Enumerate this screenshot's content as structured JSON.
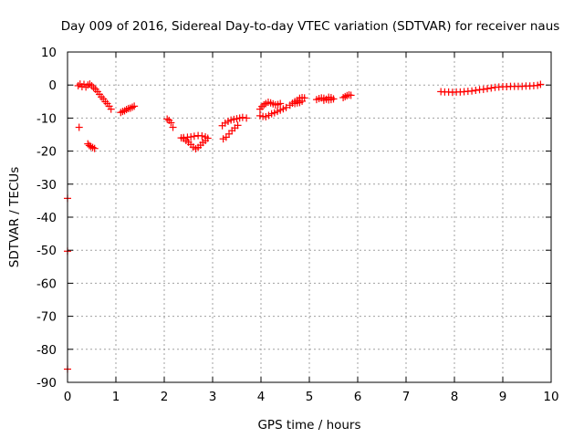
{
  "chart_data": {
    "type": "scatter",
    "title": "Day 009 of 2016, Sidereal Day-to-day VTEC variation (SDTVAR) for receiver naus",
    "xlabel": "GPS time / hours",
    "ylabel": "SDTVAR / TECUs",
    "xlim": [
      0,
      10
    ],
    "ylim": [
      -90,
      10
    ],
    "grid": true,
    "xticks": [
      0,
      1,
      2,
      3,
      4,
      5,
      6,
      7,
      8,
      9,
      10
    ],
    "yticks": [
      10,
      0,
      -10,
      -20,
      -30,
      -40,
      -50,
      -60,
      -70,
      -80,
      -90
    ],
    "marker": "+",
    "series_color": "#ff0000",
    "series": [
      {
        "name": "SDTVAR",
        "points": [
          [
            0.0,
            -34.3
          ],
          [
            0.0,
            -50.3
          ],
          [
            0.0,
            -86.0
          ],
          [
            0.24,
            -12.8
          ],
          [
            0.22,
            -0.2
          ],
          [
            0.26,
            0.3
          ],
          [
            0.3,
            -0.5
          ],
          [
            0.34,
            0.2
          ],
          [
            0.38,
            -0.6
          ],
          [
            0.42,
            0.0
          ],
          [
            0.46,
            0.3
          ],
          [
            0.5,
            -0.2
          ],
          [
            0.54,
            -0.8
          ],
          [
            0.58,
            -1.3
          ],
          [
            0.62,
            -2.0
          ],
          [
            0.66,
            -2.8
          ],
          [
            0.7,
            -3.6
          ],
          [
            0.74,
            -4.2
          ],
          [
            0.78,
            -5.0
          ],
          [
            0.82,
            -5.6
          ],
          [
            0.86,
            -6.4
          ],
          [
            0.9,
            -7.3
          ],
          [
            0.42,
            -17.8
          ],
          [
            0.45,
            -18.3
          ],
          [
            0.48,
            -18.6
          ],
          [
            0.52,
            -18.9
          ],
          [
            0.56,
            -19.2
          ],
          [
            1.1,
            -8.3
          ],
          [
            1.14,
            -8.0
          ],
          [
            1.18,
            -7.8
          ],
          [
            1.22,
            -7.4
          ],
          [
            1.26,
            -7.1
          ],
          [
            1.3,
            -7.0
          ],
          [
            1.34,
            -6.7
          ],
          [
            1.38,
            -6.4
          ],
          [
            2.06,
            -10.3
          ],
          [
            2.1,
            -10.7
          ],
          [
            2.14,
            -11.4
          ],
          [
            2.18,
            -12.8
          ],
          [
            2.35,
            -16.0
          ],
          [
            2.4,
            -16.2
          ],
          [
            2.45,
            -16.8
          ],
          [
            2.5,
            -17.3
          ],
          [
            2.55,
            -18.0
          ],
          [
            2.6,
            -18.8
          ],
          [
            2.65,
            -19.3
          ],
          [
            2.7,
            -18.9
          ],
          [
            2.75,
            -18.2
          ],
          [
            2.8,
            -17.4
          ],
          [
            2.85,
            -16.8
          ],
          [
            2.9,
            -16.1
          ],
          [
            2.85,
            -15.7
          ],
          [
            2.78,
            -15.4
          ],
          [
            2.7,
            -15.3
          ],
          [
            2.62,
            -15.5
          ],
          [
            2.55,
            -15.7
          ],
          [
            2.48,
            -15.8
          ],
          [
            2.4,
            -15.9
          ],
          [
            3.22,
            -16.3
          ],
          [
            3.28,
            -15.8
          ],
          [
            3.34,
            -14.8
          ],
          [
            3.4,
            -13.8
          ],
          [
            3.46,
            -13.0
          ],
          [
            3.52,
            -12.2
          ],
          [
            3.2,
            -12.3
          ],
          [
            3.26,
            -11.5
          ],
          [
            3.32,
            -11.0
          ],
          [
            3.38,
            -10.6
          ],
          [
            3.44,
            -10.4
          ],
          [
            3.5,
            -10.2
          ],
          [
            3.56,
            -10.0
          ],
          [
            3.62,
            -9.8
          ],
          [
            3.7,
            -10.0
          ],
          [
            3.98,
            -7.3
          ],
          [
            4.02,
            -6.5
          ],
          [
            4.06,
            -6.0
          ],
          [
            4.1,
            -5.6
          ],
          [
            4.15,
            -5.2
          ],
          [
            4.2,
            -5.4
          ],
          [
            4.25,
            -5.7
          ],
          [
            4.3,
            -6.0
          ],
          [
            4.35,
            -5.9
          ],
          [
            4.4,
            -5.6
          ],
          [
            3.98,
            -9.3
          ],
          [
            4.04,
            -9.5
          ],
          [
            4.1,
            -9.6
          ],
          [
            4.16,
            -9.2
          ],
          [
            4.22,
            -8.7
          ],
          [
            4.28,
            -8.4
          ],
          [
            4.34,
            -8.0
          ],
          [
            4.4,
            -7.6
          ],
          [
            4.46,
            -7.2
          ],
          [
            4.52,
            -6.8
          ],
          [
            4.6,
            -6.1
          ],
          [
            4.65,
            -5.5
          ],
          [
            4.7,
            -5.0
          ],
          [
            4.75,
            -4.6
          ],
          [
            4.8,
            -4.0
          ],
          [
            4.85,
            -3.8
          ],
          [
            4.9,
            -3.9
          ],
          [
            4.85,
            -4.9
          ],
          [
            4.8,
            -5.3
          ],
          [
            4.75,
            -5.4
          ],
          [
            4.7,
            -5.6
          ],
          [
            5.15,
            -4.4
          ],
          [
            5.2,
            -4.1
          ],
          [
            5.25,
            -3.9
          ],
          [
            5.3,
            -4.0
          ],
          [
            5.35,
            -4.3
          ],
          [
            5.4,
            -4.5
          ],
          [
            5.45,
            -4.4
          ],
          [
            5.5,
            -4.2
          ],
          [
            5.45,
            -3.8
          ],
          [
            5.4,
            -3.7
          ],
          [
            5.3,
            -4.6
          ],
          [
            5.7,
            -3.8
          ],
          [
            5.74,
            -3.5
          ],
          [
            5.78,
            -3.2
          ],
          [
            5.82,
            -3.0
          ],
          [
            5.86,
            -3.1
          ],
          [
            7.72,
            -2.0
          ],
          [
            7.8,
            -2.1
          ],
          [
            7.88,
            -2.1
          ],
          [
            7.96,
            -2.2
          ],
          [
            8.04,
            -2.1
          ],
          [
            8.12,
            -2.1
          ],
          [
            8.2,
            -2.0
          ],
          [
            8.28,
            -1.9
          ],
          [
            8.36,
            -1.8
          ],
          [
            8.44,
            -1.6
          ],
          [
            8.52,
            -1.4
          ],
          [
            8.6,
            -1.3
          ],
          [
            8.68,
            -1.1
          ],
          [
            8.76,
            -0.9
          ],
          [
            8.84,
            -0.7
          ],
          [
            8.92,
            -0.6
          ],
          [
            9.0,
            -0.5
          ],
          [
            9.08,
            -0.5
          ],
          [
            9.16,
            -0.4
          ],
          [
            9.24,
            -0.4
          ],
          [
            9.32,
            -0.4
          ],
          [
            9.4,
            -0.4
          ],
          [
            9.48,
            -0.3
          ],
          [
            9.56,
            -0.3
          ],
          [
            9.64,
            -0.2
          ],
          [
            9.72,
            -0.1
          ],
          [
            9.78,
            0.2
          ]
        ]
      }
    ]
  }
}
